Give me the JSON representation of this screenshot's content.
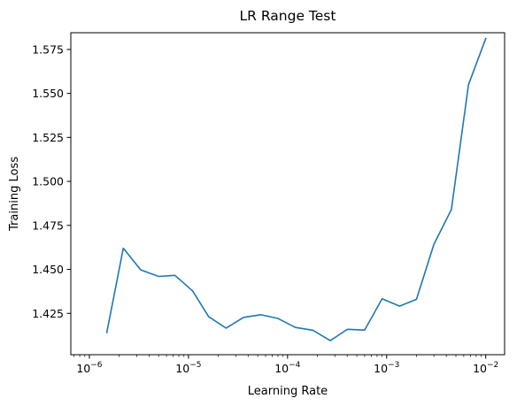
{
  "chart_data": {
    "type": "line",
    "title": "LR Range Test",
    "xlabel": "Learning Rate",
    "ylabel": "Training Loss",
    "x_scale": "log",
    "xlim": [
      6.5e-07,
      0.0155
    ],
    "ylim": [
      1.4015,
      1.5845
    ],
    "grid": false,
    "x_ticks": [
      {
        "value": 1e-06,
        "base": "10",
        "exp": "−6"
      },
      {
        "value": 1e-05,
        "base": "10",
        "exp": "−5"
      },
      {
        "value": 0.0001,
        "base": "10",
        "exp": "−4"
      },
      {
        "value": 0.001,
        "base": "10",
        "exp": "−3"
      },
      {
        "value": 0.01,
        "base": "10",
        "exp": "−2"
      }
    ],
    "y_ticks": [
      {
        "value": 1.425,
        "label": "1.425"
      },
      {
        "value": 1.45,
        "label": "1.450"
      },
      {
        "value": 1.475,
        "label": "1.475"
      },
      {
        "value": 1.5,
        "label": "1.500"
      },
      {
        "value": 1.525,
        "label": "1.525"
      },
      {
        "value": 1.55,
        "label": "1.550"
      },
      {
        "value": 1.575,
        "label": "1.575"
      }
    ],
    "series": [
      {
        "color": "#1f77b4",
        "x": [
          1.5e-06,
          2.2e-06,
          3.3e-06,
          5e-06,
          7.3e-06,
          1.1e-05,
          1.6e-05,
          2.4e-05,
          3.6e-05,
          5.4e-05,
          8e-05,
          0.00012,
          0.00018,
          0.00027,
          0.0004,
          0.0006,
          0.0009,
          0.00135,
          0.002,
          0.003,
          0.0045,
          0.0067,
          0.01
        ],
        "y": [
          1.4141,
          1.462,
          1.4497,
          1.446,
          1.4466,
          1.4378,
          1.4231,
          1.4166,
          1.4227,
          1.4242,
          1.4221,
          1.417,
          1.4154,
          1.4095,
          1.4159,
          1.4155,
          1.4333,
          1.4291,
          1.433,
          1.4643,
          1.484,
          1.555,
          1.5812
        ]
      }
    ]
  }
}
